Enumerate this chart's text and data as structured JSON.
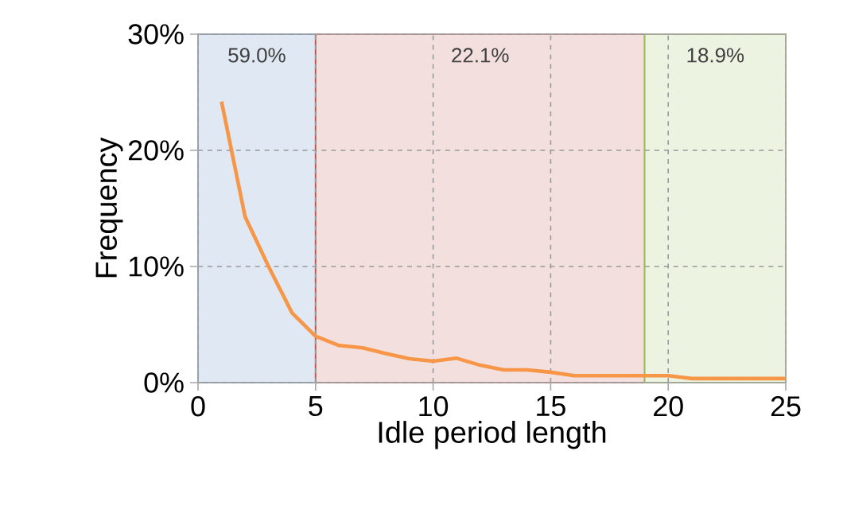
{
  "chart_data": {
    "type": "line",
    "xlabel": "Idle period length",
    "ylabel": "Frequency",
    "x": [
      1,
      2,
      3,
      4,
      5,
      6,
      7,
      8,
      9,
      10,
      11,
      12,
      13,
      14,
      15,
      16,
      17,
      18,
      19,
      20,
      21,
      22,
      23,
      24,
      25
    ],
    "series": [
      {
        "color": "#f79646",
        "values": [
          24.2,
          14.3,
          10.0,
          6.0,
          4.0,
          3.2,
          3.0,
          2.5,
          2.05,
          1.85,
          2.1,
          1.5,
          1.1,
          1.1,
          0.9,
          0.6,
          0.6,
          0.6,
          0.6,
          0.6,
          0.35,
          0.35,
          0.35,
          0.35,
          0.35
        ]
      }
    ],
    "xlim": [
      0,
      25
    ],
    "ylim": [
      0,
      30
    ],
    "xticks": [
      0,
      5,
      10,
      15,
      20,
      25
    ],
    "yticks": [
      {
        "value": 0,
        "label": "0%"
      },
      {
        "value": 10,
        "label": "10%"
      },
      {
        "value": 20,
        "label": "20%"
      },
      {
        "value": 30,
        "label": "30%"
      }
    ],
    "bands": [
      {
        "axis": "x",
        "from": 0,
        "to": 5,
        "label": "59.0%",
        "color": "#4f81bd"
      },
      {
        "axis": "x",
        "from": 5,
        "to": 19,
        "label": "22.1%",
        "color": "#c0504d"
      },
      {
        "axis": "x",
        "from": 19,
        "to": 25,
        "label": "18.9%",
        "color": "#9bbb59"
      }
    ],
    "grid": true,
    "line_style": "solid",
    "marker": "none"
  }
}
